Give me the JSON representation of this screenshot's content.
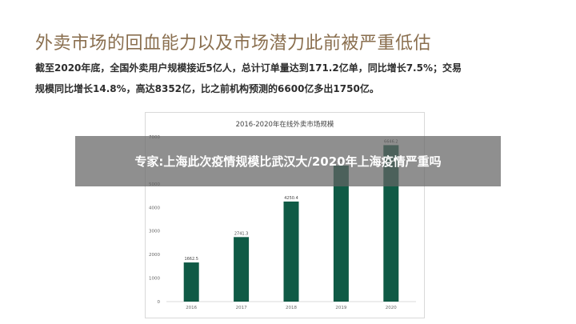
{
  "slide": {
    "title": "外卖市场的回血能力以及市场潜力此前被严重低估",
    "line1": "截至2020年底，全国外卖用户规模接近5亿人，总计订单量达到171.2亿单，同比增长7.5%；交易",
    "line2": "规模同比增长14.8%，高达8352亿，比之前机构预测的6600亿多出1750亿。"
  },
  "overlay": {
    "text": "专家:上海此次疫情规模比武汉大/2020年上海疫情严重吗"
  },
  "colors": {
    "bar": "#0f5a45",
    "title": "#8a6f4f",
    "overlay": "rgba(100,100,100,0.72)"
  },
  "chart_data": {
    "type": "bar",
    "title": "2016-2020年在线外卖市场规模",
    "categories": [
      "2016",
      "2017",
      "2018",
      "2019",
      "2020"
    ],
    "values": [
      1662.5,
      2741.3,
      4250.4,
      5779.3,
      6646.2
    ],
    "value_labels": [
      "1662.5",
      "2741.3",
      "4250.4",
      "5779.3",
      "6646.2"
    ],
    "ylim": [
      0,
      7000
    ],
    "yticks": [
      0,
      1000,
      2000,
      3000,
      4000,
      5000,
      6000,
      7000
    ],
    "xlabel": "",
    "ylabel": "",
    "grid": false,
    "legend": "none"
  }
}
